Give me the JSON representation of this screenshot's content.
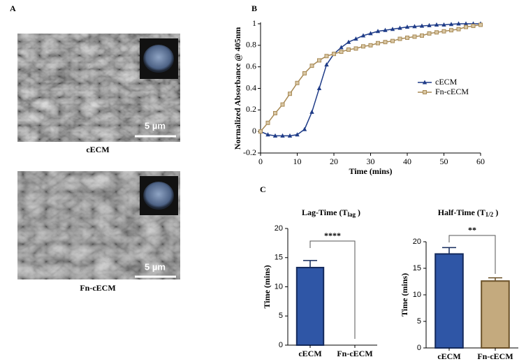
{
  "panel_labels": [
    "A",
    "B",
    "C"
  ],
  "images": [
    {
      "caption": "cECM",
      "scale_bar": "5 µm"
    },
    {
      "caption": "Fn-cECM",
      "scale_bar": "5 µm"
    }
  ],
  "chart_data": [
    {
      "type": "line",
      "ylabel": "Normalized Absorbance @ 405nm",
      "xlabel": "Time (mins)",
      "x": [
        0,
        2,
        4,
        6,
        8,
        10,
        12,
        14,
        16,
        18,
        20,
        22,
        24,
        26,
        28,
        30,
        32,
        34,
        36,
        38,
        40,
        42,
        44,
        46,
        48,
        50,
        52,
        54,
        56,
        58,
        60
      ],
      "series": [
        {
          "name": "cECM",
          "color": "#1f3c88",
          "marker": "triangle",
          "values": [
            0,
            -0.03,
            -0.04,
            -0.04,
            -0.04,
            -0.03,
            0.02,
            0.18,
            0.4,
            0.62,
            0.72,
            0.78,
            0.83,
            0.86,
            0.89,
            0.91,
            0.93,
            0.94,
            0.95,
            0.96,
            0.97,
            0.975,
            0.98,
            0.985,
            0.99,
            0.99,
            0.995,
            1,
            1,
            1,
            1
          ]
        },
        {
          "name": "Fn-cECM",
          "color": "#a88a55",
          "marker": "square",
          "values": [
            0,
            0.08,
            0.17,
            0.25,
            0.35,
            0.45,
            0.54,
            0.61,
            0.66,
            0.7,
            0.72,
            0.74,
            0.76,
            0.77,
            0.79,
            0.8,
            0.82,
            0.83,
            0.84,
            0.86,
            0.87,
            0.88,
            0.89,
            0.91,
            0.92,
            0.93,
            0.94,
            0.95,
            0.97,
            0.98,
            0.99
          ]
        }
      ],
      "xlim": [
        0,
        60
      ],
      "xticks": [
        0,
        10,
        20,
        30,
        40,
        50,
        60
      ],
      "ylim": [
        -0.2,
        1.0
      ],
      "yticks": [
        -0.2,
        0.0,
        0.2,
        0.4,
        0.6,
        0.8,
        1.0
      ]
    },
    {
      "type": "bar",
      "title": "Lag-Time (T",
      "title_subscript": "lag",
      "title_end": " )",
      "ylabel": "Time (mins)",
      "categories": [
        "cECM",
        "Fn-cECM"
      ],
      "values": [
        13.3,
        0
      ],
      "errors": [
        1.2,
        null
      ],
      "colors": [
        "#2f56a6",
        "#c4aa7e"
      ],
      "edge_colors": [
        "#142a5c",
        "#6b5128"
      ],
      "significance": "****",
      "ylim": [
        0,
        20
      ],
      "yticks": [
        0,
        5,
        10,
        15,
        20
      ]
    },
    {
      "type": "bar",
      "title": "Half-Time (T",
      "title_subscript": "1/2",
      "title_end": " )",
      "ylabel": "Time (mins)",
      "categories": [
        "cECM",
        "Fn-cECM"
      ],
      "values": [
        17.7,
        12.6
      ],
      "errors": [
        1.2,
        0.6
      ],
      "colors": [
        "#2f56a6",
        "#c4aa7e"
      ],
      "edge_colors": [
        "#142a5c",
        "#6b5128"
      ],
      "significance": "**",
      "ylim": [
        0,
        20
      ],
      "yticks": [
        0,
        5,
        10,
        15,
        20
      ]
    }
  ]
}
